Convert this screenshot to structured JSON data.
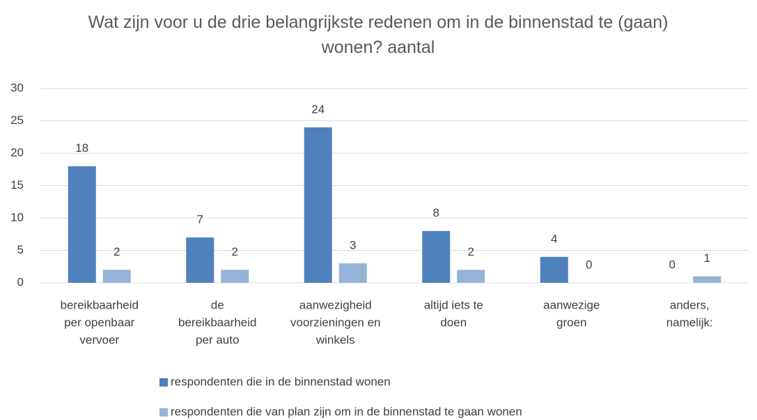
{
  "chart_data": {
    "type": "bar",
    "title": "Wat zijn voor u de drie belangrijkste redenen om in de binnenstad te (gaan) wonen?  aantal",
    "categories": [
      [
        "bereikbaarheid",
        "per openbaar",
        "vervoer"
      ],
      [
        "de",
        "bereikbaarheid",
        "per auto"
      ],
      [
        "aanwezigheid",
        "voorzieningen en",
        "winkels"
      ],
      [
        "altijd iets  te",
        "doen"
      ],
      [
        "aanwezige",
        "groen"
      ],
      [
        "anders,",
        "namelijk:"
      ]
    ],
    "series": [
      {
        "name": "respondenten die in de binnenstad wonen",
        "color": "#4f81bd",
        "values": [
          18,
          7,
          24,
          8,
          4,
          0
        ]
      },
      {
        "name": "respondenten die van plan zijn om in de binnenstad te gaan wonen",
        "color": "#95b3d7",
        "values": [
          2,
          2,
          3,
          2,
          0,
          1
        ]
      }
    ],
    "ylim": [
      0,
      30
    ],
    "yticks": [
      0,
      5,
      10,
      15,
      20,
      25,
      30
    ],
    "grid": true,
    "legend": "bottom"
  }
}
